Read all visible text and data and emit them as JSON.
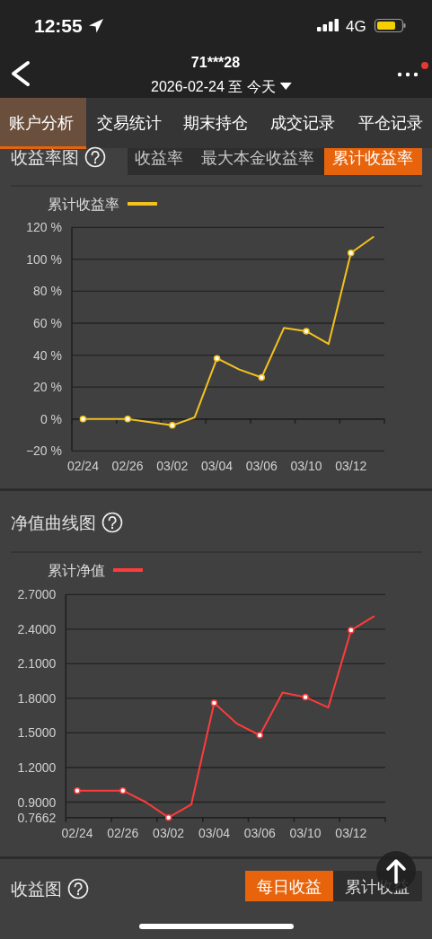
{
  "chart_data": [
    {
      "type": "line",
      "title": "收益率图",
      "categories": [
        "02/24",
        null,
        "02/26",
        null,
        "03/02",
        null,
        "03/04",
        null,
        "03/06",
        null,
        "03/10",
        null,
        "03/12",
        null
      ],
      "series": [
        {
          "name": "累计收益率",
          "color": "#f4c21e",
          "values": [
            0,
            0,
            0,
            -2,
            -4,
            1,
            38,
            31,
            26,
            57,
            55,
            47,
            104,
            114
          ]
        }
      ],
      "ylim": [
        -20,
        120
      ],
      "yticks": [
        {
          "value": -20,
          "label": "−20 %"
        },
        {
          "value": 0,
          "label": "0 %"
        },
        {
          "value": 20,
          "label": "20 %"
        },
        {
          "value": 40,
          "label": "40 %"
        },
        {
          "value": 60,
          "label": "60 %"
        },
        {
          "value": 80,
          "label": "80 %"
        },
        {
          "value": 100,
          "label": "100 %"
        },
        {
          "value": 120,
          "label": "120 %"
        }
      ],
      "grid": "y",
      "legend": "top left",
      "marker": "circle",
      "line_style": "solid",
      "annotations": [
        "12:55",
        "4G",
        "71***28",
        "2026-02-24 至 今天",
        "账户分析",
        "交易统计",
        "期末持仓",
        "成交记录",
        "平仓记录",
        "收益率",
        "最大本金收益率",
        "累计收益率"
      ]
    },
    {
      "type": "line",
      "title": "净值曲线图",
      "categories": [
        "02/24",
        null,
        "02/26",
        null,
        "03/02",
        null,
        "03/04",
        null,
        "03/06",
        null,
        "03/10",
        null,
        "03/12",
        null
      ],
      "series": [
        {
          "name": "累计净值",
          "color": "#ff3b3b",
          "values": [
            1,
            1,
            1,
            0.9,
            0.7662,
            0.88,
            1.76,
            1.58,
            1.48,
            1.85,
            1.81,
            1.72,
            2.39,
            2.51
          ]
        }
      ],
      "ylim": [
        0.7662,
        2.7
      ],
      "yticks": [
        0.7662,
        {
          "value": 0.9,
          "label": "0.9000"
        },
        {
          "value": 1.2,
          "label": "1.2000"
        },
        {
          "value": 1.5,
          "label": "1.5000"
        },
        {
          "value": 1.8,
          "label": "1.8000"
        },
        {
          "value": 2.1,
          "label": "2.1000"
        },
        {
          "value": 2.4,
          "label": "2.4000"
        },
        {
          "value": 2.7,
          "label": "2.7000"
        }
      ],
      "grid": "y",
      "legend": "top left",
      "marker": "circle",
      "line_style": "solid",
      "annotations": [
        "收益图",
        "每日收益",
        "累计收益"
      ]
    }
  ]
}
